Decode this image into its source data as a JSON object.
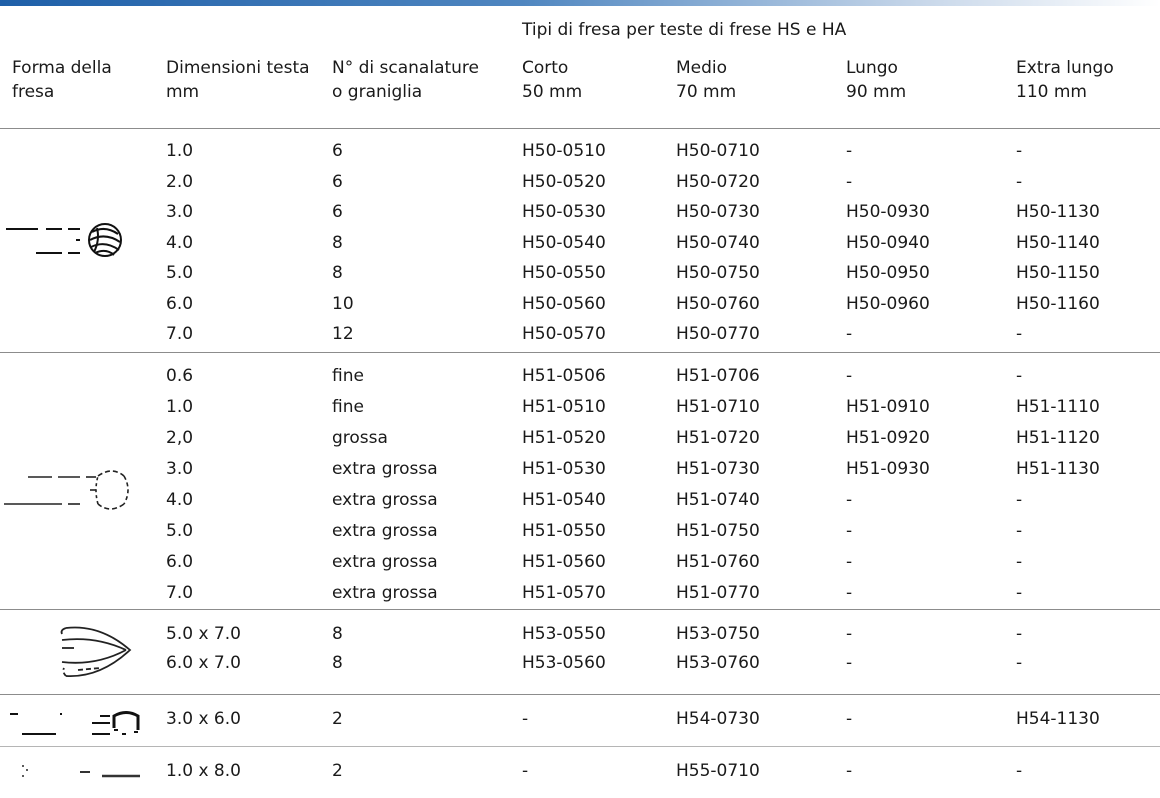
{
  "top_header": "Tipi di fresa per teste di frese HS e HA",
  "columns": {
    "shape": "Forma della\nfresa",
    "size": "Dimensioni testa\nmm",
    "grooves": "N° di scanalature\no graniglia",
    "short": "Corto\n50 mm",
    "medium": "Medio\n70 mm",
    "long": "Lungo\n90 mm",
    "xlong": "Extra lungo\n110 mm"
  },
  "groups": [
    {
      "icon": "round-fluted-cutter-icon",
      "rows": [
        [
          "1.0",
          "6",
          "H50-0510",
          "H50-0710",
          "-",
          "-"
        ],
        [
          "2.0",
          "6",
          "H50-0520",
          "H50-0720",
          "-",
          "-"
        ],
        [
          "3.0",
          "6",
          "H50-0530",
          "H50-0730",
          "H50-0930",
          "H50-1130"
        ],
        [
          "4.0",
          "8",
          "H50-0540",
          "H50-0740",
          "H50-0940",
          "H50-1140"
        ],
        [
          "5.0",
          "8",
          "H50-0550",
          "H50-0750",
          "H50-0950",
          "H50-1150"
        ],
        [
          "6.0",
          "10",
          "H50-0560",
          "H50-0760",
          "H50-0960",
          "H50-1160"
        ],
        [
          "7.0",
          "12",
          "H50-0570",
          "H50-0770",
          "-",
          "-"
        ]
      ]
    },
    {
      "icon": "round-diamond-cutter-icon",
      "rows": [
        [
          "0.6",
          "fine",
          "H51-0506",
          "H51-0706",
          "-",
          "-"
        ],
        [
          "1.0",
          "fine",
          "H51-0510",
          "H51-0710",
          "H51-0910",
          "H51-1110"
        ],
        [
          "2,0",
          "grossa",
          "H51-0520",
          "H51-0720",
          "H51-0920",
          "H51-1120"
        ],
        [
          "3.0",
          "extra grossa",
          "H51-0530",
          "H51-0730",
          "H51-0930",
          "H51-1130"
        ],
        [
          "4.0",
          "extra grossa",
          "H51-0540",
          "H51-0740",
          "-",
          "-"
        ],
        [
          "5.0",
          "extra grossa",
          "H51-0550",
          "H51-0750",
          "-",
          "-"
        ],
        [
          "6.0",
          "extra grossa",
          "H51-0560",
          "H51-0760",
          "-",
          "-"
        ],
        [
          "7.0",
          "extra grossa",
          "H51-0570",
          "H51-0770",
          "-",
          "-"
        ]
      ]
    },
    {
      "icon": "oval-cutter-icon",
      "rows": [
        [
          "5.0 x 7.0",
          "8",
          "H53-0550",
          "H53-0750",
          "-",
          "-"
        ],
        [
          "6.0 x 7.0",
          "8",
          "H53-0560",
          "H53-0760",
          "-",
          "-"
        ]
      ]
    },
    {
      "icon": "cylindrical-cutter-icon",
      "rows": [
        [
          "3.0 x 6.0",
          "2",
          "-",
          "H54-0730",
          "-",
          "H54-1130"
        ]
      ]
    },
    {
      "icon": "drill-cutter-icon",
      "rows": [
        [
          "1.0 x 8.0",
          "2",
          "-",
          "H55-0710",
          "-",
          "-"
        ]
      ]
    }
  ]
}
